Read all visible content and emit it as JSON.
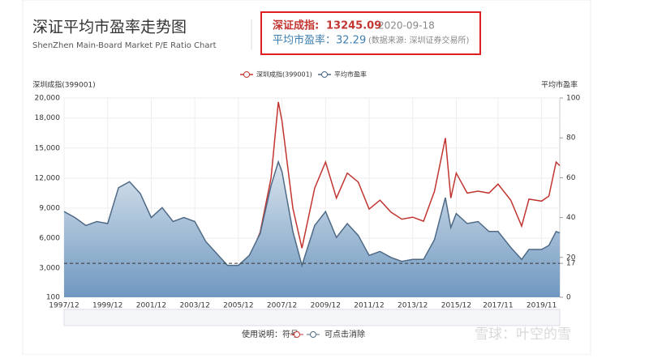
{
  "header": {
    "title": "深证平均市盈率走势图",
    "subtitle": "ShenZhen Main-Board Market P/E Ratio Chart",
    "index_label": "深证成指:",
    "index_value": 13245.09,
    "date": "2020-09-18",
    "pe_label": "平均市盈率：",
    "pe_value": 32.29,
    "source": "(数据来源: 深圳证券交易所)"
  },
  "chart_data": {
    "type": "line",
    "y_label": "深圳成指(399001)",
    "y2_label": "平均市盈率",
    "x": [
      "1997/12",
      "1998/06",
      "1998/12",
      "1999/06",
      "1999/12",
      "2000/06",
      "2000/12",
      "2001/06",
      "2001/12",
      "2002/06",
      "2002/12",
      "2003/06",
      "2003/12",
      "2004/06",
      "2004/12",
      "2005/06",
      "2005/12",
      "2006/06",
      "2006/12",
      "2007/06",
      "2007/10",
      "2007/12",
      "2008/06",
      "2008/11",
      "2009/06",
      "2009/12",
      "2010/06",
      "2010/12",
      "2011/06",
      "2011/12",
      "2012/06",
      "2012/12",
      "2013/06",
      "2013/12",
      "2014/06",
      "2014/12",
      "2015/06",
      "2015/09",
      "2015/12",
      "2016/06",
      "2016/12",
      "2017/06",
      "2017/11",
      "2018/06",
      "2018/12",
      "2019/04",
      "2019/11",
      "2020/03",
      "2020/07",
      "2020/09"
    ],
    "xlim": [
      "1997/12",
      "2020/09"
    ],
    "xticks": [
      "1997/12",
      "1999/12",
      "2001/12",
      "2003/12",
      "2005/12",
      "2007/12",
      "2009/12",
      "2011/12",
      "2013/12",
      "2015/12",
      "2017/11",
      "2019/11"
    ],
    "series": [
      {
        "name": "深圳成指(399001)",
        "color": "#c23531",
        "values": [
          4000,
          3600,
          2900,
          4200,
          3800,
          4600,
          4900,
          4700,
          3500,
          3700,
          3100,
          3300,
          3300,
          3200,
          3000,
          2800,
          2900,
          3900,
          6600,
          12000,
          19600,
          17700,
          9000,
          5000,
          11000,
          13600,
          10000,
          12500,
          11600,
          8900,
          9800,
          8600,
          7900,
          8100,
          7700,
          10700,
          16000,
          10000,
          12500,
          10500,
          10700,
          10500,
          11400,
          9800,
          7200,
          9900,
          9700,
          10200,
          13600,
          13245.09
        ]
      },
      {
        "name": "平均市盈率",
        "color": "#4f6a86",
        "axis": "y2",
        "values": [
          43,
          40,
          36,
          38,
          37,
          55,
          58,
          52,
          40,
          45,
          38,
          40,
          38,
          28,
          22,
          16,
          16,
          21,
          32,
          56,
          68,
          63,
          33,
          16,
          36,
          43,
          30,
          37,
          31,
          21,
          23,
          20,
          18,
          19,
          19,
          29,
          50,
          35,
          42,
          37,
          38,
          33,
          33,
          25,
          19,
          24,
          24,
          26,
          33,
          32.29
        ]
      }
    ],
    "ylim": [
      100,
      20000
    ],
    "yticks": [
      100,
      {
        "value": 3000,
        "label": "3,000"
      },
      {
        "value": 6000,
        "label": "6,000"
      },
      {
        "value": 9000,
        "label": "9,000"
      },
      {
        "value": 12000,
        "label": "12,000"
      },
      {
        "value": 15000,
        "label": "15,000"
      },
      {
        "value": 18000,
        "label": "18,000"
      },
      {
        "value": 20000,
        "label": "20,000"
      }
    ],
    "y2lim": [
      0,
      100
    ],
    "y2ticks": [
      0,
      17,
      20,
      40,
      60,
      80,
      100
    ],
    "ref_line": {
      "axis": "y2",
      "value": 17
    },
    "grid": true,
    "hint": {
      "prefix": "使用说明：符号",
      "suffix": "可点击消除"
    },
    "watermark": "雪球：叶空的雪"
  }
}
